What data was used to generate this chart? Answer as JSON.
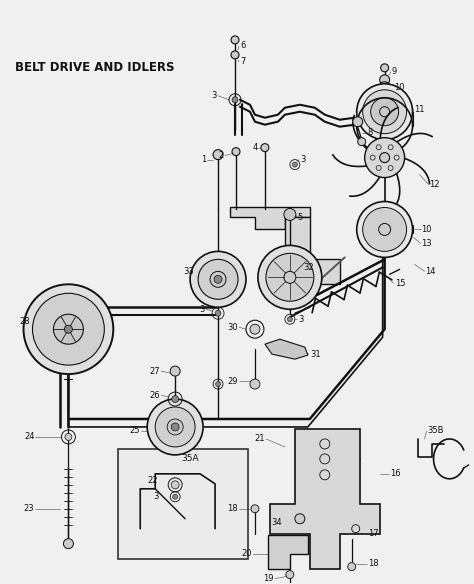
{
  "title": "BELT DRIVE AND IDLERS",
  "bg_color": "#f0f0f0",
  "fig_width": 4.74,
  "fig_height": 5.84,
  "dpi": 100,
  "col": "#111111",
  "gray": "#888888",
  "lgray": "#cccccc"
}
